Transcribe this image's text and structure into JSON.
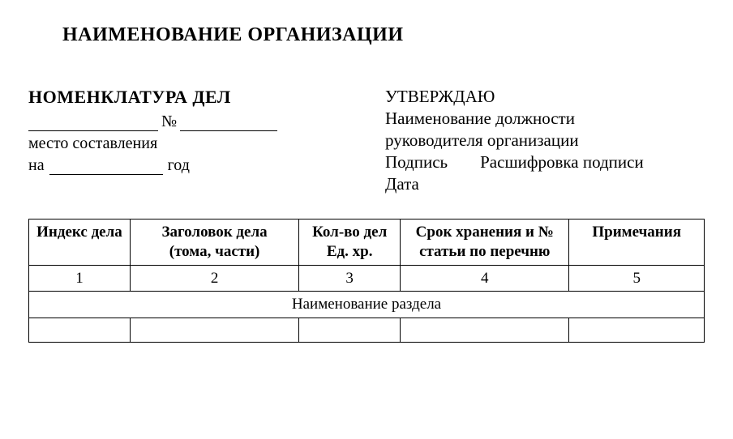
{
  "org_title": "НАИМЕНОВАНИЕ ОРГАНИЗАЦИИ",
  "left": {
    "nomenclature": "НОМЕНКЛАТУРА ДЕЛ",
    "number_sign": "№",
    "place": "место составления",
    "na": "на",
    "god": "год"
  },
  "right": {
    "approve": "УТВЕРЖДАЮ",
    "position_line1": "Наименование должности",
    "position_line2": "руководителя организации",
    "signature": "Подпись",
    "decipher": "Расшифровка подписи",
    "date": "Дата"
  },
  "table": {
    "headers": {
      "c1": "Индекс дела",
      "c2_l1": "Заголовок дела",
      "c2_l2": "(тома, части)",
      "c3_l1": "Кол-во дел",
      "c3_l2": "Ед. хр.",
      "c4_l1": "Срок хранения и №",
      "c4_l2": "статьи по перечню",
      "c5": "Примечания"
    },
    "nums": {
      "n1": "1",
      "n2": "2",
      "n3": "3",
      "n4": "4",
      "n5": "5"
    },
    "section_title": "Наименование раздела",
    "col_widths_pct": [
      15,
      25,
      15,
      25,
      20
    ],
    "border_color": "#000000",
    "background": "#ffffff",
    "font_size_pt": 14
  }
}
